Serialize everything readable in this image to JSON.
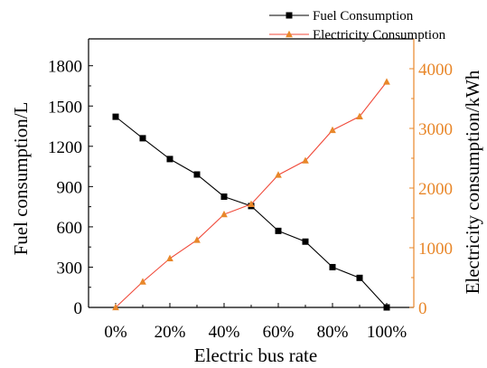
{
  "chart_data": {
    "type": "line",
    "title": "",
    "xlabel": "Electric bus rate",
    "x": [
      0,
      10,
      20,
      30,
      40,
      50,
      60,
      70,
      80,
      90,
      100
    ],
    "x_tick_labels": [
      "0%",
      "20%",
      "40%",
      "60%",
      "80%",
      "100%"
    ],
    "x_tick_values": [
      0,
      20,
      40,
      60,
      80,
      100
    ],
    "xlim": [
      -10,
      110
    ],
    "left_axis": {
      "label": "Fuel consumption/L",
      "ylim": [
        0,
        2000
      ],
      "ticks": [
        0,
        300,
        600,
        900,
        1200,
        1500,
        1800
      ],
      "color": "#000000"
    },
    "right_axis": {
      "label": "Electricity consumption/kWh",
      "ylim": [
        0,
        4500
      ],
      "ticks": [
        0,
        1000,
        2000,
        3000,
        4000
      ],
      "color": "#e8872a"
    },
    "series": [
      {
        "name": "Fuel Consumption",
        "axis": "left",
        "color": "#000000",
        "marker": "square",
        "values": [
          1420,
          1260,
          1105,
          990,
          825,
          755,
          570,
          490,
          300,
          220,
          0
        ]
      },
      {
        "name": "Electricity Consumption",
        "axis": "right",
        "color": "#e8872a",
        "line_color": "#f04a3a",
        "marker": "triangle",
        "values": [
          0,
          430,
          820,
          1130,
          1560,
          1730,
          2220,
          2460,
          2970,
          3200,
          3780
        ]
      }
    ],
    "grid": false,
    "legend_position": "top-right"
  }
}
